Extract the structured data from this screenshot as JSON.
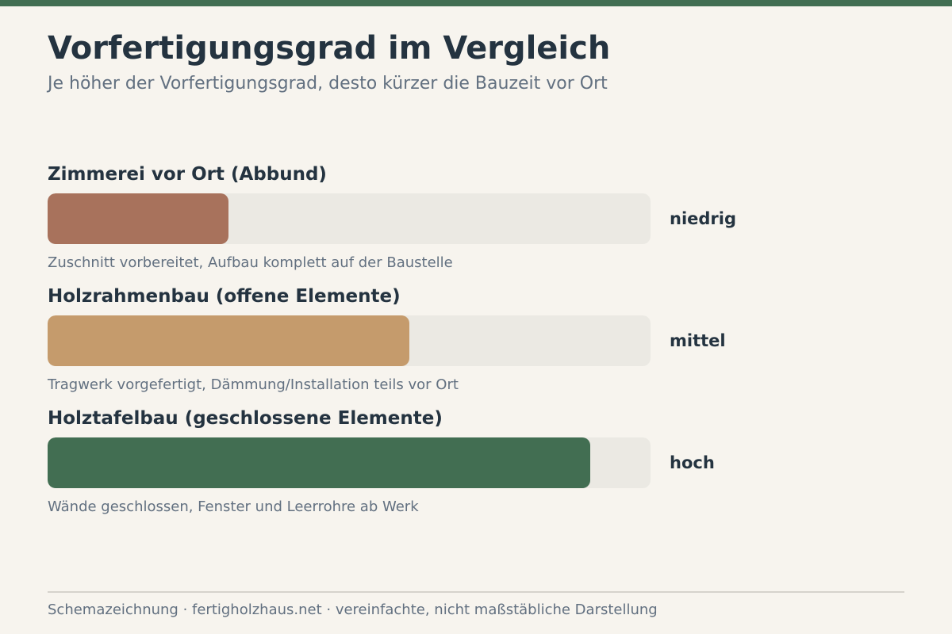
{
  "colors": {
    "accent": "#426e52",
    "background": "#f7f4ee",
    "track": "#ebe9e3"
  },
  "title": "Vorfertigungsgrad im Vergleich",
  "subtitle": "Je höher der Vorfertigungsgrad, desto kürzer die Bauzeit vor Ort",
  "chart_data": {
    "type": "bar",
    "orientation": "horizontal",
    "title": "Vorfertigungsgrad im Vergleich",
    "subtitle": "Je höher der Vorfertigungsgrad, desto kürzer die Bauzeit vor Ort",
    "xlim": [
      0,
      100
    ],
    "grid": false,
    "categories": [
      "Zimmerei vor Ort (Abbund)",
      "Holzrahmenbau (offene Elemente)",
      "Holztafelbau (geschlossene Elemente)"
    ],
    "values": [
      30,
      60,
      90
    ],
    "bars": [
      {
        "label": "Zimmerei vor Ort (Abbund)",
        "value": 30,
        "level": "niedrig",
        "note": "Zuschnitt vorbereitet, Aufbau komplett auf der Baustelle",
        "color": "#a8725c"
      },
      {
        "label": "Holzrahmenbau (offene Elemente)",
        "value": 60,
        "level": "mittel",
        "note": "Tragwerk vorgefertigt, Dämmung/Installation teils vor Ort",
        "color": "#c59b6c"
      },
      {
        "label": "Holztafelbau (geschlossene Elemente)",
        "value": 90,
        "level": "hoch",
        "note": "Wände geschlossen, Fenster und Leerrohre ab Werk",
        "color": "#426e52"
      }
    ]
  },
  "footer": "Schemazeichnung · fertigholzhaus.net · vereinfachte, nicht maßstäbliche Darstellung"
}
